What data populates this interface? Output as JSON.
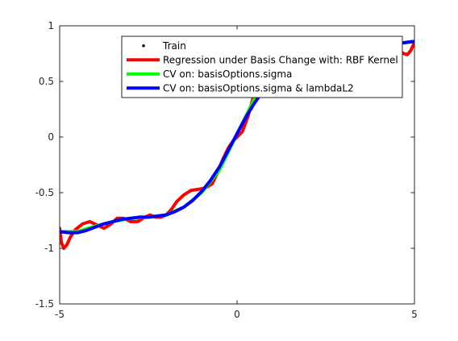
{
  "chart_data": {
    "type": "line",
    "title": "",
    "xlabel": "",
    "ylabel": "",
    "xlim": [
      -5,
      5
    ],
    "ylim": [
      -1.5,
      1
    ],
    "grid": false,
    "legend_placement": "top-right",
    "x_ticks": [
      {
        "value": -5,
        "label": "-5"
      },
      {
        "value": 0,
        "label": "0"
      },
      {
        "value": 5,
        "label": "5"
      }
    ],
    "y_ticks": [
      {
        "value": 1,
        "label": "1"
      },
      {
        "value": 0.5,
        "label": "0.5"
      },
      {
        "value": 0,
        "label": "0"
      },
      {
        "value": -0.5,
        "label": "-0.5"
      },
      {
        "value": -1,
        "label": "-1"
      },
      {
        "value": -1.5,
        "label": "-1.5"
      }
    ],
    "series": [
      {
        "name": "Train",
        "style": "markers",
        "color": "#000000",
        "x": [],
        "y": []
      },
      {
        "name": "Regression under Basis Change with: RBF Kernel",
        "style": "line",
        "color": "#ff0000",
        "x": [
          -5.0,
          -4.95,
          -4.88,
          -4.8,
          -4.7,
          -4.55,
          -4.35,
          -4.15,
          -3.95,
          -3.75,
          -3.55,
          -3.38,
          -3.2,
          -3.0,
          -2.8,
          -2.6,
          -2.45,
          -2.3,
          -2.15,
          -2.0,
          -1.85,
          -1.7,
          -1.5,
          -1.3,
          -1.1,
          -0.9,
          -0.7,
          -0.55,
          -0.4,
          -0.25,
          -0.1,
          0.0,
          0.15,
          0.3,
          0.45,
          0.6,
          0.75,
          0.9,
          1.1,
          1.3,
          1.5,
          1.7,
          1.9,
          2.1,
          2.3,
          2.5,
          2.7,
          2.9,
          3.1,
          3.3,
          3.5,
          3.7,
          3.9,
          4.1,
          4.3,
          4.5,
          4.6,
          4.7,
          4.8,
          4.9,
          5.0
        ],
        "y": [
          -0.82,
          -0.95,
          -1.0,
          -0.97,
          -0.9,
          -0.83,
          -0.78,
          -0.76,
          -0.79,
          -0.82,
          -0.78,
          -0.73,
          -0.73,
          -0.76,
          -0.76,
          -0.72,
          -0.7,
          -0.72,
          -0.72,
          -0.7,
          -0.65,
          -0.58,
          -0.52,
          -0.48,
          -0.47,
          -0.46,
          -0.42,
          -0.32,
          -0.2,
          -0.1,
          -0.03,
          0.0,
          0.05,
          0.18,
          0.35,
          0.5,
          0.6,
          0.64,
          0.66,
          0.69,
          0.71,
          0.72,
          0.72,
          0.74,
          0.76,
          0.76,
          0.75,
          0.76,
          0.79,
          0.8,
          0.79,
          0.8,
          0.82,
          0.83,
          0.82,
          0.8,
          0.77,
          0.75,
          0.74,
          0.78,
          0.85
        ]
      },
      {
        "name": "CV on:  basisOptions.sigma",
        "style": "line",
        "color": "#00ff00",
        "x": [
          -5.0,
          -4.5,
          -4.0,
          -3.5,
          -3.0,
          -2.5,
          -2.0,
          -1.5,
          -1.0,
          -0.5,
          0.0,
          0.5,
          1.0,
          1.5,
          2.0,
          2.5,
          3.0,
          3.5,
          4.0,
          4.5,
          5.0
        ],
        "y": [
          -0.85,
          -0.85,
          -0.8,
          -0.76,
          -0.73,
          -0.72,
          -0.7,
          -0.63,
          -0.5,
          -0.3,
          0.03,
          0.35,
          0.53,
          0.65,
          0.71,
          0.75,
          0.78,
          0.8,
          0.82,
          0.84,
          0.86
        ]
      },
      {
        "name": "CV on: basisOptions.sigma & lambdaL2",
        "style": "line",
        "color": "#0000ff",
        "x": [
          -5.0,
          -4.75,
          -4.5,
          -4.25,
          -4.0,
          -3.75,
          -3.5,
          -3.25,
          -3.0,
          -2.75,
          -2.5,
          -2.25,
          -2.0,
          -1.75,
          -1.5,
          -1.25,
          -1.0,
          -0.75,
          -0.5,
          -0.25,
          0.0,
          0.25,
          0.5,
          0.75,
          1.0,
          1.25,
          1.5,
          1.75,
          2.0,
          2.5,
          3.0,
          3.5,
          4.0,
          4.5,
          5.0
        ],
        "y": [
          -0.85,
          -0.86,
          -0.86,
          -0.84,
          -0.81,
          -0.78,
          -0.76,
          -0.74,
          -0.73,
          -0.72,
          -0.72,
          -0.71,
          -0.7,
          -0.67,
          -0.63,
          -0.57,
          -0.49,
          -0.39,
          -0.27,
          -0.12,
          0.03,
          0.18,
          0.31,
          0.42,
          0.51,
          0.58,
          0.63,
          0.67,
          0.7,
          0.74,
          0.77,
          0.8,
          0.82,
          0.84,
          0.86
        ]
      }
    ]
  }
}
